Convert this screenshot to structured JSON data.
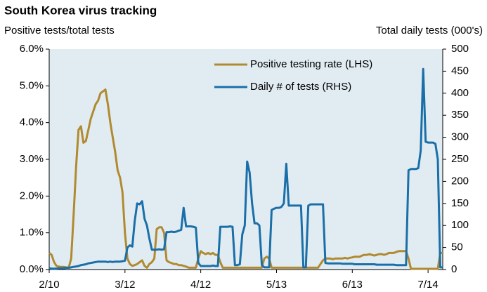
{
  "chart_data": {
    "type": "line",
    "title": "South Korea virus tracking",
    "ylabel": "Positive tests/total tests",
    "y2label": "Total daily tests (000's)",
    "categories": [
      "2/10",
      null,
      null,
      null,
      null,
      null,
      null,
      null,
      null,
      null,
      null,
      null,
      null,
      null,
      null,
      null,
      null,
      null,
      null,
      null,
      null,
      null,
      null,
      null,
      null,
      null,
      null,
      null,
      null,
      null,
      null,
      "3/12",
      null,
      null,
      null,
      null,
      null,
      null,
      null,
      null,
      null,
      null,
      null,
      null,
      null,
      null,
      null,
      null,
      null,
      null,
      null,
      null,
      null,
      null,
      null,
      null,
      null,
      null,
      null,
      null,
      null,
      null,
      "4/12",
      null,
      null,
      null,
      null,
      null,
      null,
      null,
      null,
      null,
      null,
      null,
      null,
      null,
      null,
      null,
      null,
      null,
      null,
      null,
      null,
      null,
      null,
      null,
      null,
      null,
      null,
      null,
      null,
      null,
      null,
      "5/13",
      null,
      null,
      null,
      null,
      null,
      null,
      null,
      null,
      null,
      null,
      null,
      null,
      null,
      null,
      null,
      null,
      null,
      null,
      null,
      null,
      null,
      null,
      null,
      null,
      null,
      null,
      null,
      null,
      null,
      null,
      "6/13",
      null,
      null,
      null,
      null,
      null,
      null,
      null,
      null,
      null,
      null,
      null,
      null,
      null,
      null,
      null,
      null,
      null,
      null,
      null,
      null,
      null,
      null,
      null,
      null,
      null,
      null,
      null,
      null,
      null,
      null,
      "7/14",
      null,
      null,
      null,
      null,
      null,
      null
    ],
    "series": [
      {
        "name": "Positive testing rate (LHS)",
        "color": "#b08a30",
        "axis": "y",
        "values": [
          0.45,
          0.4,
          0.2,
          0.1,
          0.08,
          0.07,
          0.07,
          0.06,
          0.05,
          0.3,
          1.5,
          2.8,
          3.8,
          3.9,
          3.45,
          3.5,
          3.8,
          4.1,
          4.3,
          4.5,
          4.6,
          4.8,
          4.85,
          4.9,
          4.5,
          4.0,
          3.6,
          3.2,
          2.7,
          2.5,
          2.1,
          1.0,
          0.3,
          0.15,
          0.1,
          0.12,
          0.15,
          0.2,
          0.25,
          0.1,
          0.05,
          0.15,
          0.2,
          0.3,
          1.1,
          1.15,
          1.15,
          1.0,
          0.25,
          0.2,
          0.18,
          0.15,
          0.15,
          0.12,
          0.12,
          0.1,
          0.08,
          0.05,
          0.05,
          0.05,
          0.05,
          0.3,
          0.5,
          0.45,
          0.42,
          0.45,
          0.42,
          0.45,
          0.4,
          0.4,
          0.2,
          0.05,
          0.05,
          0.05,
          0.05,
          0.05,
          0.05,
          0.05,
          0.05,
          0.05,
          0.05,
          0.05,
          0.05,
          0.05,
          0.05,
          0.05,
          0.05,
          0.05,
          0.3,
          0.35,
          0.3,
          0.05,
          0.05,
          0.05,
          0.05,
          0.05,
          0.05,
          0.05,
          0.05,
          0.05,
          0.05,
          0.05,
          0.05,
          0.05,
          0.05,
          0.05,
          0.05,
          0.05,
          0.05,
          0.05,
          0.05,
          0.15,
          0.25,
          0.3,
          0.3,
          0.3,
          0.28,
          0.3,
          0.3,
          0.3,
          0.3,
          0.32,
          0.3,
          0.32,
          0.33,
          0.35,
          0.35,
          0.35,
          0.38,
          0.4,
          0.4,
          0.42,
          0.4,
          0.38,
          0.4,
          0.42,
          0.42,
          0.4,
          0.42,
          0.45,
          0.45,
          0.45,
          0.48,
          0.5,
          0.5,
          0.5,
          0.5,
          0.3,
          0.02,
          0.02,
          0.02,
          0.02,
          0.02,
          0.02,
          0.02,
          0.02,
          0.02,
          0.02,
          0.02,
          0.02,
          0.45,
          0.45
        ]
      },
      {
        "name": "Daily # of tests (RHS)",
        "color": "#1a6fa8",
        "axis": "y2",
        "values": [
          3,
          2,
          2,
          2,
          3,
          3,
          3,
          4,
          4,
          5,
          6,
          7,
          8,
          10,
          11,
          12,
          14,
          15,
          16,
          17,
          18,
          18,
          18,
          18,
          17,
          18,
          17,
          18,
          18,
          18,
          19,
          20,
          50,
          55,
          52,
          110,
          150,
          148,
          155,
          115,
          100,
          70,
          45,
          45,
          45,
          46,
          45,
          46,
          85,
          85,
          86,
          85,
          86,
          88,
          90,
          140,
          98,
          98,
          98,
          97,
          95,
          15,
          8,
          8,
          8,
          8,
          8,
          9,
          8,
          8,
          97,
          97,
          97,
          97,
          98,
          97,
          10,
          10,
          12,
          80,
          100,
          245,
          220,
          150,
          105,
          105,
          100,
          10,
          5,
          5,
          5,
          135,
          138,
          140,
          140,
          142,
          150,
          240,
          145,
          145,
          145,
          145,
          145,
          145,
          5,
          5,
          145,
          148,
          148,
          148,
          148,
          148,
          148,
          15,
          14,
          14,
          14,
          14,
          14,
          14,
          13,
          13,
          13,
          13,
          13,
          12,
          12,
          12,
          12,
          12,
          12,
          12,
          12,
          12,
          11,
          11,
          11,
          11,
          11,
          11,
          11,
          11,
          10,
          10,
          10,
          10,
          10,
          225,
          228,
          228,
          228,
          230,
          270,
          455,
          290,
          288,
          288,
          288,
          285,
          250,
          5,
          5
        ]
      }
    ],
    "ylim": [
      0,
      6
    ],
    "yticks": [
      {
        "value": 0,
        "label": "0.0%"
      },
      {
        "value": 1,
        "label": "1.0%"
      },
      {
        "value": 2,
        "label": "2.0%"
      },
      {
        "value": 3,
        "label": "3.0%"
      },
      {
        "value": 4,
        "label": "4.0%"
      },
      {
        "value": 5,
        "label": "5.0%"
      },
      {
        "value": 6,
        "label": "6.0%"
      }
    ],
    "y2lim": [
      0,
      500
    ],
    "y2ticks": [
      0,
      50,
      100,
      150,
      200,
      250,
      300,
      350,
      400,
      450,
      500
    ],
    "grid": false
  }
}
